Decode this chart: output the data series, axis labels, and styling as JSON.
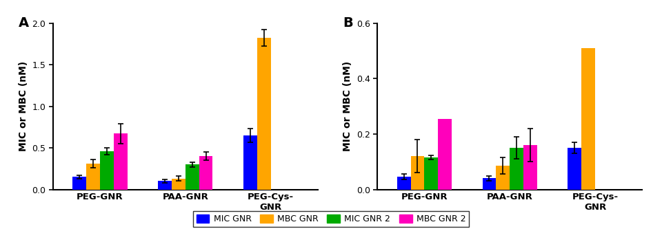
{
  "panel_A": {
    "label": "A",
    "groups": [
      "PEG-GNR",
      "PAA-GNR",
      "PEG-Cys-\nGNR"
    ],
    "series": {
      "MIC GNR": [
        0.15,
        0.1,
        0.65
      ],
      "MBC GNR": [
        0.31,
        0.13,
        1.82
      ],
      "MIC GNR 2": [
        0.46,
        0.3,
        0.0
      ],
      "MBC GNR 2": [
        0.67,
        0.4,
        0.0
      ]
    },
    "errors": {
      "MIC GNR": [
        0.02,
        0.02,
        0.08
      ],
      "MBC GNR": [
        0.05,
        0.03,
        0.1
      ],
      "MIC GNR 2": [
        0.04,
        0.03,
        0.0
      ],
      "MBC GNR 2": [
        0.12,
        0.05,
        0.0
      ]
    },
    "ylim": [
      0,
      2.0
    ],
    "yticks": [
      0.0,
      0.5,
      1.0,
      1.5,
      2.0
    ],
    "ylabel": "MIC or MBC (nM)"
  },
  "panel_B": {
    "label": "B",
    "groups": [
      "PEG-GNR",
      "PAA-GNR",
      "PEG-Cys-\nGNR"
    ],
    "series": {
      "MIC GNR": [
        0.045,
        0.04,
        0.15
      ],
      "MBC GNR": [
        0.12,
        0.085,
        0.51
      ],
      "MIC GNR 2": [
        0.115,
        0.15,
        0.0
      ],
      "MBC GNR 2": [
        0.255,
        0.16,
        0.0
      ]
    },
    "errors": {
      "MIC GNR": [
        0.01,
        0.008,
        0.02
      ],
      "MBC GNR": [
        0.06,
        0.03,
        0.0
      ],
      "MIC GNR 2": [
        0.008,
        0.04,
        0.0
      ],
      "MBC GNR 2": [
        0.0,
        0.06,
        0.0
      ]
    },
    "ylim": [
      0,
      0.6
    ],
    "yticks": [
      0.0,
      0.2,
      0.4,
      0.6
    ],
    "ylabel": "MIC or MBC (nM)"
  },
  "colors": {
    "MIC GNR": "#0000FF",
    "MBC GNR": "#FFA500",
    "MIC GNR 2": "#00AA00",
    "MBC GNR 2": "#FF00BB"
  },
  "series_order": [
    "MIC GNR",
    "MBC GNR",
    "MIC GNR 2",
    "MBC GNR 2"
  ],
  "bar_width": 0.16,
  "legend_ncol": 4
}
